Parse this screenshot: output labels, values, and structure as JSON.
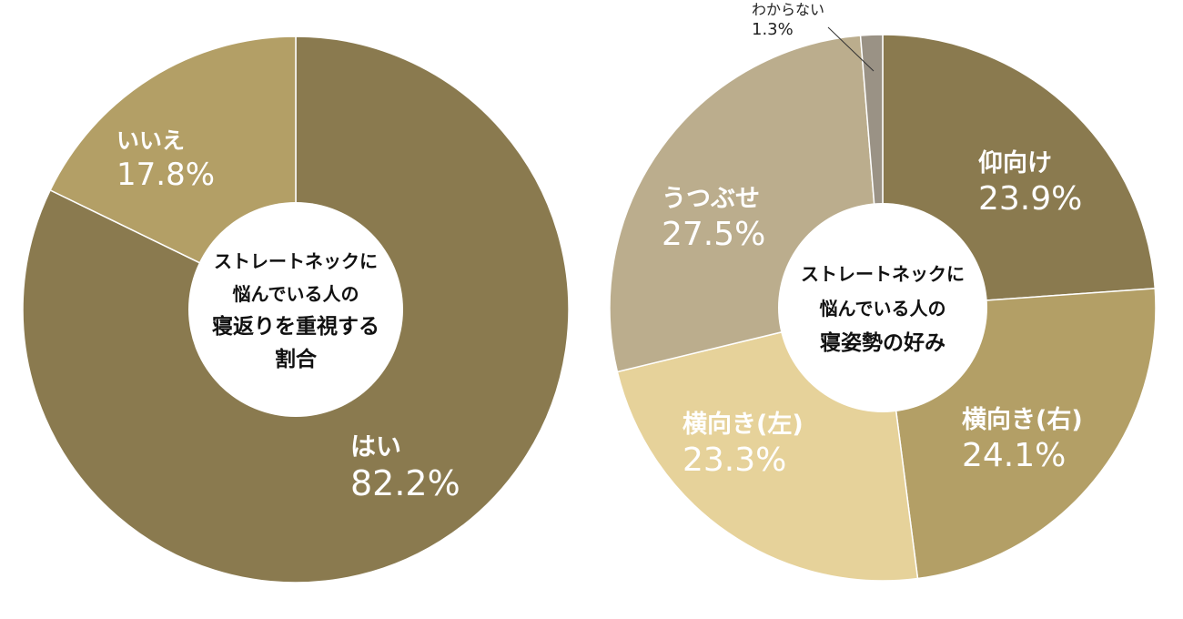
{
  "chart_data": [
    {
      "type": "pie",
      "title": "ストレートネックに\n悩んでいる人の\n寝返りを重視する\n割合",
      "slices": [
        {
          "label": "はい",
          "value": 82.2,
          "value_text": "82.2%",
          "color": "#8a7a4f"
        },
        {
          "label": "いいえ",
          "value": 17.8,
          "value_text": "17.8%",
          "color": "#b39f66"
        }
      ]
    },
    {
      "type": "pie",
      "title": "ストレートネックに\n悩んでいる人の\n寝姿勢の好み",
      "slices": [
        {
          "label": "仰向け",
          "value": 23.9,
          "value_text": "23.9%",
          "color": "#8a7a4f"
        },
        {
          "label": "横向き(右)",
          "value": 24.1,
          "value_text": "24.1%",
          "color": "#b39f66"
        },
        {
          "label": "横向き(左)",
          "value": 23.3,
          "value_text": "23.3%",
          "color": "#e6d29a"
        },
        {
          "label": "うつぶせ",
          "value": 27.5,
          "value_text": "27.5%",
          "color": "#bbad8d"
        },
        {
          "label": "わからない",
          "value": 1.3,
          "value_text": "1.3%",
          "color": "#9a9285"
        }
      ]
    }
  ]
}
